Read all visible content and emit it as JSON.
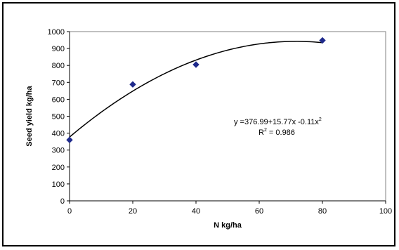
{
  "chart_data": {
    "type": "scatter",
    "title": "",
    "xlabel": "N kg/ha",
    "ylabel": "Seed yield kg/ha",
    "xlim": [
      0,
      100
    ],
    "ylim": [
      0,
      1000
    ],
    "xticks": [
      0,
      20,
      40,
      60,
      80,
      100
    ],
    "yticks": [
      0,
      100,
      200,
      300,
      400,
      500,
      600,
      700,
      800,
      900,
      1000
    ],
    "grid": false,
    "series": [
      {
        "x": [
          0,
          20,
          40,
          80
        ],
        "y": [
          360,
          688,
          805,
          948
        ],
        "color": "#1f2a8c",
        "marker": "diamond"
      }
    ],
    "trendline": {
      "type": "polynomial",
      "coefficients": [
        376.99,
        15.77,
        -0.11
      ],
      "color": "#000000"
    },
    "annotations": {
      "equation_prefix": "y =376.99+15.77x -0.11x",
      "equation_sup": "2",
      "r2_prefix": "R",
      "r2_sup": "2",
      "r2_value": " = 0.986"
    }
  }
}
